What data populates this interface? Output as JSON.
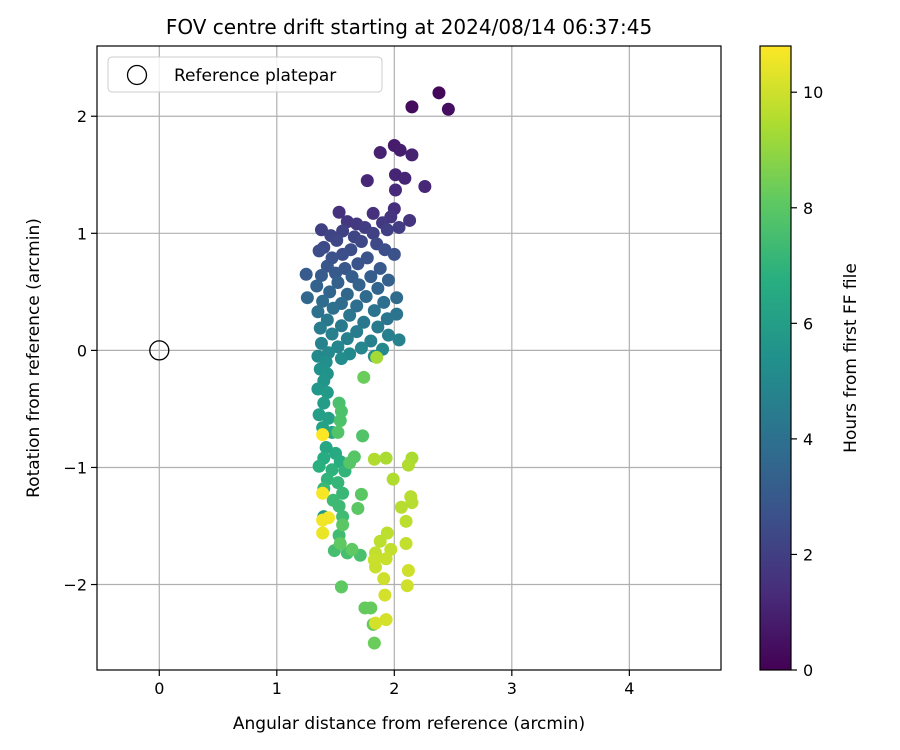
{
  "chart_data": {
    "type": "scatter",
    "title": "FOV centre drift starting at 2024/08/14 06:37:45",
    "xlabel": "Angular distance from reference (arcmin)",
    "ylabel": "Rotation from reference (arcmin)",
    "xlim": [
      -0.53,
      4.78
    ],
    "ylim": [
      -2.73,
      2.6
    ],
    "xticks": [
      0,
      1,
      2,
      3,
      4
    ],
    "yticks": [
      -2,
      -1,
      0,
      1,
      2
    ],
    "grid": true,
    "legend": {
      "placement": "top-left",
      "entries": [
        "Reference platepar"
      ]
    },
    "reference_point": {
      "x": 0,
      "y": 0
    },
    "colorbar": {
      "label": "Hours from first FF file",
      "colormap": "viridis",
      "range": [
        0,
        10.8
      ],
      "ticks": [
        0,
        2,
        4,
        6,
        8,
        10
      ]
    },
    "points": [
      {
        "x": 2.38,
        "y": 2.2,
        "h": 0.2
      },
      {
        "x": 2.15,
        "y": 2.08,
        "h": 0.3
      },
      {
        "x": 2.46,
        "y": 2.06,
        "h": 0.4
      },
      {
        "x": 2.0,
        "y": 1.75,
        "h": 0.8
      },
      {
        "x": 2.05,
        "y": 1.71,
        "h": 0.9
      },
      {
        "x": 1.88,
        "y": 1.69,
        "h": 1.0
      },
      {
        "x": 2.15,
        "y": 1.67,
        "h": 1.0
      },
      {
        "x": 2.01,
        "y": 1.5,
        "h": 1.1
      },
      {
        "x": 2.09,
        "y": 1.47,
        "h": 1.1
      },
      {
        "x": 1.77,
        "y": 1.45,
        "h": 1.2
      },
      {
        "x": 2.26,
        "y": 1.4,
        "h": 1.2
      },
      {
        "x": 2.01,
        "y": 1.37,
        "h": 1.3
      },
      {
        "x": 2.0,
        "y": 1.21,
        "h": 1.4
      },
      {
        "x": 1.53,
        "y": 1.18,
        "h": 1.5
      },
      {
        "x": 1.82,
        "y": 1.17,
        "h": 1.5
      },
      {
        "x": 1.97,
        "y": 1.14,
        "h": 1.6
      },
      {
        "x": 2.13,
        "y": 1.11,
        "h": 1.6
      },
      {
        "x": 1.6,
        "y": 1.1,
        "h": 1.7
      },
      {
        "x": 1.68,
        "y": 1.08,
        "h": 1.8
      },
      {
        "x": 1.9,
        "y": 1.09,
        "h": 1.8
      },
      {
        "x": 1.75,
        "y": 1.05,
        "h": 1.9
      },
      {
        "x": 2.04,
        "y": 1.05,
        "h": 1.9
      },
      {
        "x": 1.38,
        "y": 1.03,
        "h": 2.0
      },
      {
        "x": 1.94,
        "y": 1.03,
        "h": 2.0
      },
      {
        "x": 1.56,
        "y": 1.02,
        "h": 2.1
      },
      {
        "x": 1.82,
        "y": 1.0,
        "h": 2.1
      },
      {
        "x": 1.46,
        "y": 0.98,
        "h": 2.2
      },
      {
        "x": 1.66,
        "y": 0.97,
        "h": 2.2
      },
      {
        "x": 1.51,
        "y": 0.94,
        "h": 2.3
      },
      {
        "x": 1.72,
        "y": 0.93,
        "h": 2.3
      },
      {
        "x": 1.85,
        "y": 0.91,
        "h": 2.4
      },
      {
        "x": 1.4,
        "y": 0.88,
        "h": 2.4
      },
      {
        "x": 1.36,
        "y": 0.85,
        "h": 2.5
      },
      {
        "x": 1.63,
        "y": 0.86,
        "h": 2.5
      },
      {
        "x": 1.92,
        "y": 0.86,
        "h": 2.6
      },
      {
        "x": 1.56,
        "y": 0.82,
        "h": 2.6
      },
      {
        "x": 2.0,
        "y": 0.82,
        "h": 2.7
      },
      {
        "x": 1.47,
        "y": 0.79,
        "h": 2.7
      },
      {
        "x": 1.77,
        "y": 0.79,
        "h": 2.8
      },
      {
        "x": 1.69,
        "y": 0.74,
        "h": 2.8
      },
      {
        "x": 1.43,
        "y": 0.72,
        "h": 2.9
      },
      {
        "x": 1.58,
        "y": 0.7,
        "h": 2.9
      },
      {
        "x": 1.88,
        "y": 0.7,
        "h": 3.0
      },
      {
        "x": 1.5,
        "y": 0.66,
        "h": 3.0
      },
      {
        "x": 1.25,
        "y": 0.65,
        "h": 3.1
      },
      {
        "x": 1.38,
        "y": 0.64,
        "h": 3.1
      },
      {
        "x": 1.64,
        "y": 0.63,
        "h": 3.2
      },
      {
        "x": 1.8,
        "y": 0.63,
        "h": 3.2
      },
      {
        "x": 1.95,
        "y": 0.6,
        "h": 3.3
      },
      {
        "x": 1.52,
        "y": 0.58,
        "h": 3.3
      },
      {
        "x": 1.7,
        "y": 0.56,
        "h": 3.4
      },
      {
        "x": 1.34,
        "y": 0.55,
        "h": 3.4
      },
      {
        "x": 1.86,
        "y": 0.53,
        "h": 3.5
      },
      {
        "x": 1.45,
        "y": 0.5,
        "h": 3.5
      },
      {
        "x": 1.6,
        "y": 0.48,
        "h": 3.6
      },
      {
        "x": 1.26,
        "y": 0.45,
        "h": 3.6
      },
      {
        "x": 1.76,
        "y": 0.46,
        "h": 3.7
      },
      {
        "x": 2.02,
        "y": 0.45,
        "h": 3.7
      },
      {
        "x": 1.39,
        "y": 0.42,
        "h": 3.8
      },
      {
        "x": 1.55,
        "y": 0.4,
        "h": 3.8
      },
      {
        "x": 1.91,
        "y": 0.41,
        "h": 3.9
      },
      {
        "x": 1.68,
        "y": 0.38,
        "h": 3.9
      },
      {
        "x": 1.48,
        "y": 0.36,
        "h": 4.0
      },
      {
        "x": 1.35,
        "y": 0.33,
        "h": 4.0
      },
      {
        "x": 1.83,
        "y": 0.34,
        "h": 4.1
      },
      {
        "x": 2.02,
        "y": 0.31,
        "h": 4.1
      },
      {
        "x": 1.62,
        "y": 0.3,
        "h": 4.2
      },
      {
        "x": 1.94,
        "y": 0.27,
        "h": 4.2
      },
      {
        "x": 1.43,
        "y": 0.26,
        "h": 4.3
      },
      {
        "x": 1.74,
        "y": 0.24,
        "h": 4.3
      },
      {
        "x": 1.55,
        "y": 0.21,
        "h": 4.4
      },
      {
        "x": 1.86,
        "y": 0.2,
        "h": 4.4
      },
      {
        "x": 1.37,
        "y": 0.19,
        "h": 4.5
      },
      {
        "x": 1.68,
        "y": 0.16,
        "h": 4.5
      },
      {
        "x": 1.47,
        "y": 0.14,
        "h": 4.6
      },
      {
        "x": 1.95,
        "y": 0.13,
        "h": 4.6
      },
      {
        "x": 1.6,
        "y": 0.1,
        "h": 4.7
      },
      {
        "x": 1.8,
        "y": 0.08,
        "h": 4.7
      },
      {
        "x": 2.04,
        "y": 0.09,
        "h": 4.8
      },
      {
        "x": 1.38,
        "y": 0.06,
        "h": 4.8
      },
      {
        "x": 1.52,
        "y": 0.03,
        "h": 4.9
      },
      {
        "x": 1.72,
        "y": 0.02,
        "h": 4.9
      },
      {
        "x": 1.9,
        "y": 0.01,
        "h": 5.0
      },
      {
        "x": 1.44,
        "y": -0.02,
        "h": 5.0
      },
      {
        "x": 1.62,
        "y": -0.03,
        "h": 5.1
      },
      {
        "x": 1.35,
        "y": -0.05,
        "h": 5.1
      },
      {
        "x": 1.83,
        "y": -0.05,
        "h": 5.2
      },
      {
        "x": 1.55,
        "y": -0.07,
        "h": 5.2
      },
      {
        "x": 1.42,
        "y": -0.1,
        "h": 5.3
      },
      {
        "x": 1.37,
        "y": -0.16,
        "h": 5.4
      },
      {
        "x": 1.43,
        "y": -0.2,
        "h": 5.5
      },
      {
        "x": 1.4,
        "y": -0.26,
        "h": 5.6
      },
      {
        "x": 1.35,
        "y": -0.33,
        "h": 5.7
      },
      {
        "x": 1.43,
        "y": -0.36,
        "h": 5.8
      },
      {
        "x": 1.4,
        "y": -0.45,
        "h": 5.9
      },
      {
        "x": 1.36,
        "y": -0.55,
        "h": 6.0
      },
      {
        "x": 1.44,
        "y": -0.58,
        "h": 6.1
      },
      {
        "x": 1.39,
        "y": -0.66,
        "h": 6.2
      },
      {
        "x": 1.47,
        "y": -0.7,
        "h": 6.3
      },
      {
        "x": 1.42,
        "y": -0.83,
        "h": 6.4
      },
      {
        "x": 1.5,
        "y": -0.88,
        "h": 6.5
      },
      {
        "x": 1.4,
        "y": -0.92,
        "h": 6.6
      },
      {
        "x": 1.54,
        "y": -0.95,
        "h": 6.7
      },
      {
        "x": 1.36,
        "y": -0.99,
        "h": 6.8
      },
      {
        "x": 1.47,
        "y": -1.02,
        "h": 6.9
      },
      {
        "x": 1.58,
        "y": -1.03,
        "h": 7.0
      },
      {
        "x": 1.43,
        "y": -1.1,
        "h": 7.0
      },
      {
        "x": 1.52,
        "y": -1.13,
        "h": 7.1
      },
      {
        "x": 1.4,
        "y": -1.18,
        "h": 7.2
      },
      {
        "x": 1.56,
        "y": -1.22,
        "h": 7.2
      },
      {
        "x": 1.48,
        "y": -1.28,
        "h": 7.3
      },
      {
        "x": 1.53,
        "y": -1.33,
        "h": 7.3
      },
      {
        "x": 1.4,
        "y": -1.42,
        "h": 5.8
      },
      {
        "x": 1.56,
        "y": -1.42,
        "h": 7.4
      },
      {
        "x": 1.53,
        "y": -1.58,
        "h": 7.4
      },
      {
        "x": 1.49,
        "y": -1.71,
        "h": 7.5
      },
      {
        "x": 1.6,
        "y": -1.73,
        "h": 7.5
      },
      {
        "x": 1.71,
        "y": -1.75,
        "h": 7.6
      },
      {
        "x": 1.53,
        "y": -0.45,
        "h": 7.6
      },
      {
        "x": 1.55,
        "y": -0.52,
        "h": 7.7
      },
      {
        "x": 1.54,
        "y": -0.6,
        "h": 7.7
      },
      {
        "x": 1.52,
        "y": -0.7,
        "h": 7.8
      },
      {
        "x": 1.73,
        "y": -0.73,
        "h": 7.8
      },
      {
        "x": 1.66,
        "y": -0.91,
        "h": 7.9
      },
      {
        "x": 1.62,
        "y": -0.96,
        "h": 7.9
      },
      {
        "x": 1.72,
        "y": -1.23,
        "h": 8.0
      },
      {
        "x": 1.69,
        "y": -1.35,
        "h": 8.0
      },
      {
        "x": 1.56,
        "y": -1.49,
        "h": 8.0
      },
      {
        "x": 1.54,
        "y": -1.65,
        "h": 8.1
      },
      {
        "x": 1.64,
        "y": -1.7,
        "h": 8.1
      },
      {
        "x": 1.55,
        "y": -2.02,
        "h": 8.1
      },
      {
        "x": 1.75,
        "y": -2.2,
        "h": 8.2
      },
      {
        "x": 1.8,
        "y": -2.2,
        "h": 8.2
      },
      {
        "x": 1.82,
        "y": -2.34,
        "h": 8.2
      },
      {
        "x": 1.83,
        "y": -2.5,
        "h": 8.3
      },
      {
        "x": 1.74,
        "y": -0.23,
        "h": 8.3
      },
      {
        "x": 1.85,
        "y": -0.06,
        "h": 9.3
      },
      {
        "x": 1.93,
        "y": -0.92,
        "h": 9.4
      },
      {
        "x": 2.15,
        "y": -0.92,
        "h": 9.4
      },
      {
        "x": 2.12,
        "y": -0.98,
        "h": 9.5
      },
      {
        "x": 1.83,
        "y": -0.93,
        "h": 9.5
      },
      {
        "x": 1.99,
        "y": -1.1,
        "h": 9.5
      },
      {
        "x": 2.14,
        "y": -1.25,
        "h": 9.6
      },
      {
        "x": 2.15,
        "y": -1.3,
        "h": 9.6
      },
      {
        "x": 2.06,
        "y": -1.34,
        "h": 9.6
      },
      {
        "x": 2.1,
        "y": -1.46,
        "h": 9.7
      },
      {
        "x": 1.94,
        "y": -1.56,
        "h": 9.7
      },
      {
        "x": 1.88,
        "y": -1.63,
        "h": 9.7
      },
      {
        "x": 1.97,
        "y": -1.7,
        "h": 9.8
      },
      {
        "x": 2.1,
        "y": -1.65,
        "h": 9.8
      },
      {
        "x": 1.84,
        "y": -1.73,
        "h": 9.8
      },
      {
        "x": 1.83,
        "y": -1.79,
        "h": 9.9
      },
      {
        "x": 1.93,
        "y": -1.78,
        "h": 9.9
      },
      {
        "x": 1.84,
        "y": -1.85,
        "h": 9.9
      },
      {
        "x": 2.12,
        "y": -1.88,
        "h": 10.0
      },
      {
        "x": 1.91,
        "y": -1.95,
        "h": 10.0
      },
      {
        "x": 2.11,
        "y": -2.01,
        "h": 10.0
      },
      {
        "x": 1.92,
        "y": -2.09,
        "h": 10.1
      },
      {
        "x": 1.93,
        "y": -2.3,
        "h": 10.1
      },
      {
        "x": 1.84,
        "y": -2.33,
        "h": 10.1
      },
      {
        "x": 1.39,
        "y": -0.72,
        "h": 10.8
      },
      {
        "x": 1.39,
        "y": -1.22,
        "h": 10.7
      },
      {
        "x": 1.39,
        "y": -1.45,
        "h": 10.6
      },
      {
        "x": 1.44,
        "y": -1.43,
        "h": 10.6
      },
      {
        "x": 1.39,
        "y": -1.56,
        "h": 10.5
      }
    ]
  }
}
